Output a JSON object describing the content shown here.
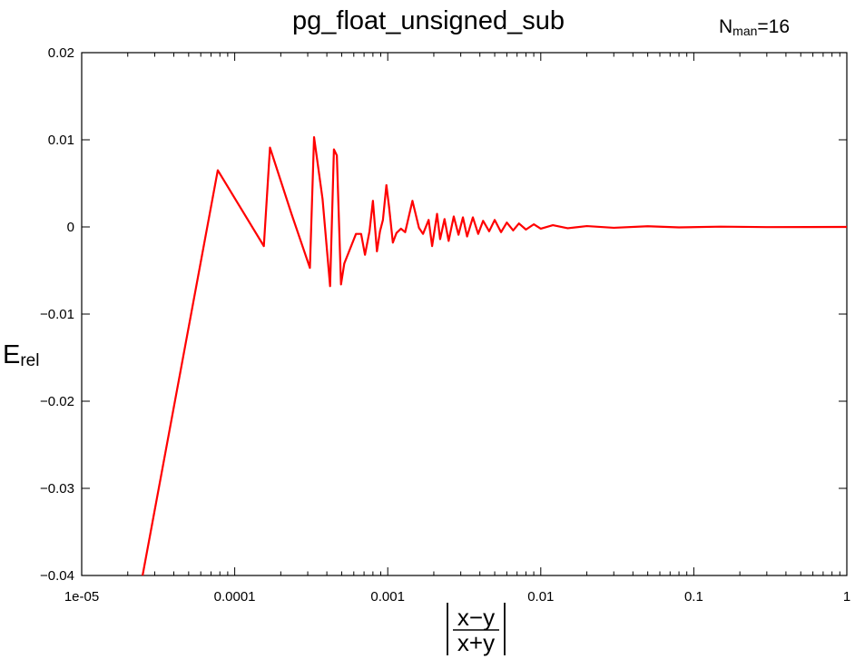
{
  "chart_data": {
    "type": "line",
    "title": "pg_float_unsigned_sub",
    "annotation": {
      "main": "N",
      "subscript": "man",
      "suffix": "=16"
    },
    "xlabel": {
      "numerator": "x−y",
      "denominator": "x+y"
    },
    "ylabel": {
      "main": "E",
      "subscript": "rel"
    },
    "x_scale": "log",
    "xlim": [
      1e-05,
      1
    ],
    "ylim": [
      -0.04,
      0.02
    ],
    "x_ticks": [
      1e-05,
      0.0001,
      0.001,
      0.01,
      0.1,
      1
    ],
    "x_tick_labels": [
      "1e-05",
      "0.0001",
      "0.001",
      "0.01",
      "0.1",
      "1"
    ],
    "y_ticks": [
      0.02,
      0.01,
      0,
      -0.01,
      -0.02,
      -0.03,
      -0.04
    ],
    "y_tick_labels": [
      "0.02",
      "0.01",
      "0",
      "-0.01",
      "-0.02",
      "-0.03",
      "-0.04"
    ],
    "grid": false,
    "line_color": "#ff0000",
    "series": [
      {
        "x": [
          2.5e-05,
          7.75e-05,
          0.000155,
          0.00017,
          0.000235,
          0.00031,
          0.00033,
          0.000375,
          0.00042,
          0.000445,
          0.000465,
          0.000495,
          0.00052,
          0.00062,
          0.00067,
          0.00071,
          0.00076,
          0.0008,
          0.00085,
          0.00089,
          0.00093,
          0.00098,
          0.00102,
          0.00108,
          0.00114,
          0.00122,
          0.0013,
          0.00145,
          0.0016,
          0.0017,
          0.00185,
          0.00195,
          0.0021,
          0.0022,
          0.00235,
          0.0025,
          0.0027,
          0.0029,
          0.0031,
          0.0033,
          0.0036,
          0.0039,
          0.0042,
          0.0046,
          0.005,
          0.0055,
          0.006,
          0.0066,
          0.0072,
          0.008,
          0.009,
          0.01,
          0.012,
          0.015,
          0.02,
          0.03,
          0.05,
          0.08,
          0.15,
          0.3,
          1
        ],
        "y": [
          -0.04,
          0.0065,
          -0.0022,
          0.0091,
          0.0015,
          -0.0047,
          0.0103,
          0.0032,
          -0.0068,
          0.0089,
          0.0082,
          -0.0066,
          -0.0042,
          -0.0008,
          -0.0008,
          -0.0032,
          -0.0005,
          0.003,
          -0.0028,
          -0.0005,
          0.0008,
          0.0048,
          0.0023,
          -0.0018,
          -0.0007,
          -0.0002,
          -0.0006,
          0.003,
          -0.0001,
          -0.0008,
          0.0008,
          -0.0022,
          0.0015,
          -0.0014,
          0.0009,
          -0.0016,
          0.0012,
          -0.0009,
          0.0011,
          -0.0011,
          0.0011,
          -0.0008,
          0.0007,
          -0.0005,
          0.0008,
          -0.0006,
          0.0005,
          -0.0004,
          0.0004,
          -0.0003,
          0.0003,
          -0.0002,
          0.0002,
          -0.00015,
          0.0001,
          -0.0001,
          8e-05,
          -5e-05,
          3e-05,
          -2e-05,
          0
        ]
      }
    ]
  }
}
